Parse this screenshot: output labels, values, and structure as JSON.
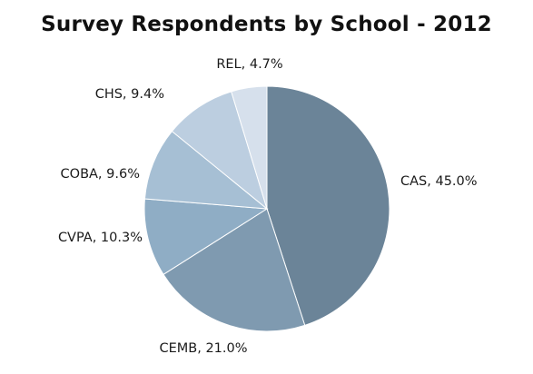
{
  "chart_data": {
    "type": "pie",
    "title": "Survey Respondents by School - 2012",
    "slices": [
      {
        "label": "CAS",
        "value": 45.0,
        "display": "CAS, 45.0%",
        "color": "#6b8498"
      },
      {
        "label": "CEMB",
        "value": 21.0,
        "display": "CEMB, 21.0%",
        "color": "#7f9ab0"
      },
      {
        "label": "CVPA",
        "value": 10.3,
        "display": "CVPA, 10.3%",
        "color": "#8fadc5"
      },
      {
        "label": "COBA",
        "value": 9.6,
        "display": "COBA, 9.6%",
        "color": "#a6bfd4"
      },
      {
        "label": "CHS",
        "value": 9.4,
        "display": "CHS, 9.4%",
        "color": "#bccee0"
      },
      {
        "label": "REL",
        "value": 4.7,
        "display": "REL, 4.7%",
        "color": "#d6e0ec"
      }
    ],
    "start_angle": "12 o'clock",
    "direction": "clockwise",
    "legend": "none",
    "label_style": "outside"
  }
}
